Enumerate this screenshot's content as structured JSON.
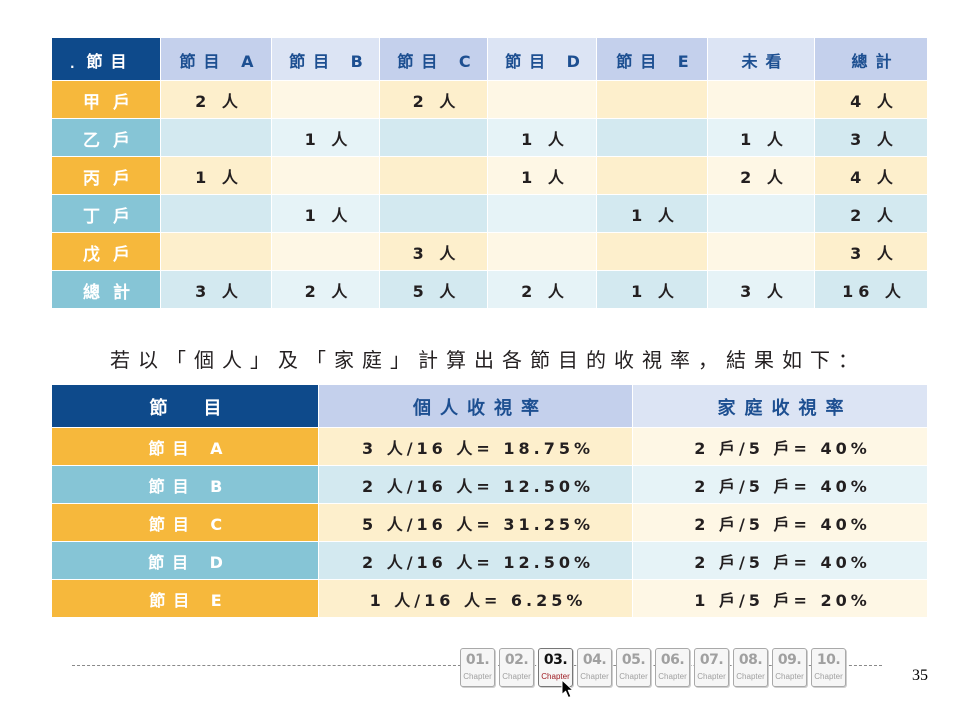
{
  "household_table": {
    "corner_mark": ".",
    "corner_label": "節目",
    "columns": [
      "節目 A",
      "節目 B",
      "節目 C",
      "節目 D",
      "節目 E",
      "未看",
      "總計"
    ],
    "rows": [
      {
        "label": "甲戶",
        "cells": [
          "2 人",
          "",
          "2 人",
          "",
          "",
          "",
          "4 人"
        ]
      },
      {
        "label": "乙戶",
        "cells": [
          "",
          "1 人",
          "",
          "1 人",
          "",
          "1 人",
          "3 人"
        ]
      },
      {
        "label": "丙戶",
        "cells": [
          "1 人",
          "",
          "",
          "1 人",
          "",
          "2 人",
          "4 人"
        ]
      },
      {
        "label": "丁戶",
        "cells": [
          "",
          "1 人",
          "",
          "",
          "1 人",
          "",
          "2 人"
        ]
      },
      {
        "label": "戊戶",
        "cells": [
          "",
          "",
          "3 人",
          "",
          "",
          "",
          "3 人"
        ]
      },
      {
        "label": "總計",
        "cells": [
          "3 人",
          "2 人",
          "5 人",
          "2 人",
          "1 人",
          "3 人",
          "16 人"
        ]
      }
    ]
  },
  "sentence": "若以「個人」及「家庭」計算出各節目的收視率，結果如下：",
  "rating_table": {
    "corner_label": "節　目",
    "columns": [
      "個人收視率",
      "家庭收視率"
    ],
    "rows": [
      {
        "label": "節目 A",
        "personal": "3 人/16 人= 18.75%",
        "household": "2 戶/5 戶= 40%"
      },
      {
        "label": "節目 B",
        "personal": "2 人/16 人= 12.50%",
        "household": "2 戶/5 戶= 40%"
      },
      {
        "label": "節目 C",
        "personal": "5 人/16 人= 31.25%",
        "household": "2 戶/5 戶= 40%"
      },
      {
        "label": "節目 D",
        "personal": "2 人/16 人= 12.50%",
        "household": "2 戶/5 戶= 40%"
      },
      {
        "label": "節目 E",
        "personal": "1 人/16 人= 6.25%",
        "household": "1 戶/5 戶= 20%"
      }
    ]
  },
  "chapter_nav": {
    "items": [
      {
        "number": "01.",
        "label": "Chapter"
      },
      {
        "number": "02.",
        "label": "Chapter"
      },
      {
        "number": "03.",
        "label": "Chapter",
        "selected": true
      },
      {
        "number": "04.",
        "label": "Chapter"
      },
      {
        "number": "05.",
        "label": "Chapter"
      },
      {
        "number": "06.",
        "label": "Chapter"
      },
      {
        "number": "07.",
        "label": "Chapter"
      },
      {
        "number": "08.",
        "label": "Chapter"
      },
      {
        "number": "09.",
        "label": "Chapter"
      },
      {
        "number": "10.",
        "label": "Chapter"
      }
    ]
  },
  "page_number": "35",
  "icons": {
    "pointer": "cursor-arrow-icon"
  },
  "colors": {
    "header_dark": "#0e4a8b",
    "header_light": "#c4d0ec",
    "header_lighter": "#dce4f4",
    "header_text": "#1d4f91",
    "row_yellow": "#f6b83c",
    "row_teal": "#86c5d6",
    "cell_cream": "#fdefcc",
    "cell_cream_light": "#fef7e5",
    "cell_blue": "#d3e9f0",
    "cell_blue_light": "#e6f3f7",
    "active_chapter_label": "#9e1b22"
  }
}
